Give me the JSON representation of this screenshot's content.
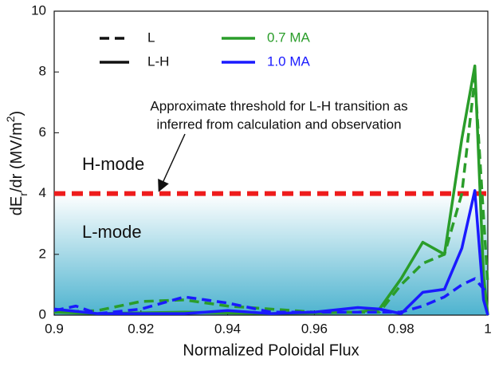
{
  "chart_data": {
    "type": "line",
    "xlabel": "Normalized Poloidal Flux",
    "ylabel": [
      "dE",
      "r",
      "/dr (MV/m",
      "2",
      ")"
    ],
    "xlim": [
      0.9,
      1.0
    ],
    "ylim": [
      0,
      10
    ],
    "xticks": [
      0.9,
      0.92,
      0.94,
      0.96,
      0.98,
      1
    ],
    "yticks": [
      0,
      2,
      4,
      6,
      8,
      10
    ],
    "threshold": {
      "value": 4,
      "color": "#ee1c1c"
    },
    "annotations": [
      "Approximate threshold for L-H transition as",
      "inferred from calculation and observation"
    ],
    "regions": [
      "H-mode",
      "L-mode"
    ],
    "legend": {
      "styles": [
        {
          "label": "L",
          "dashed": true
        },
        {
          "label": "L-H",
          "dashed": false
        }
      ],
      "colors": [
        {
          "label": "0.7 MA",
          "color": "#2a9d2a"
        },
        {
          "label": "1.0 MA",
          "color": "#1a1aff"
        }
      ]
    },
    "series": [
      {
        "color": "#2a9d2a",
        "dashed": true,
        "x": [
          0.9,
          0.91,
          0.92,
          0.93,
          0.94,
          0.96,
          0.975,
          0.98,
          0.985,
          0.99,
          0.994,
          0.997,
          1.0
        ],
        "values": [
          0.1,
          0.15,
          0.45,
          0.5,
          0.3,
          0.1,
          0.1,
          1.0,
          1.7,
          2.0,
          4.0,
          7.8,
          1.0
        ]
      },
      {
        "color": "#2a9d2a",
        "dashed": false,
        "x": [
          0.9,
          0.91,
          0.93,
          0.95,
          0.97,
          0.975,
          0.98,
          0.985,
          0.99,
          0.994,
          0.997,
          0.999,
          1.0
        ],
        "values": [
          0.1,
          0.05,
          0.1,
          0.05,
          0.1,
          0.2,
          1.2,
          2.4,
          2.0,
          5.8,
          8.2,
          1.3,
          0.0
        ]
      },
      {
        "color": "#1a1aff",
        "dashed": true,
        "x": [
          0.9,
          0.905,
          0.91,
          0.92,
          0.93,
          0.94,
          0.95,
          0.97,
          0.98,
          0.985,
          0.99,
          0.994,
          0.997,
          1.0
        ],
        "values": [
          0.15,
          0.3,
          0.05,
          0.2,
          0.6,
          0.4,
          0.1,
          0.1,
          0.1,
          0.3,
          0.6,
          1.0,
          1.2,
          0.7
        ]
      },
      {
        "color": "#1a1aff",
        "dashed": false,
        "x": [
          0.9,
          0.91,
          0.93,
          0.94,
          0.95,
          0.96,
          0.97,
          0.975,
          0.98,
          0.985,
          0.99,
          0.994,
          0.997,
          0.999,
          1.0
        ],
        "values": [
          0.2,
          0.05,
          0.05,
          0.15,
          0.05,
          0.1,
          0.25,
          0.2,
          0.05,
          0.75,
          0.85,
          2.2,
          4.1,
          0.5,
          0.0
        ]
      }
    ]
  }
}
